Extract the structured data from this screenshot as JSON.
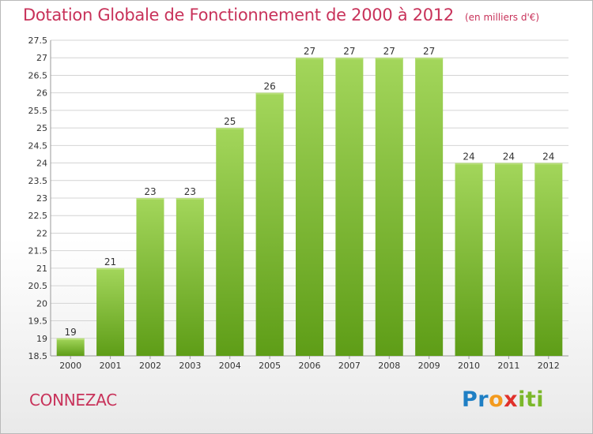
{
  "title": "Dotation Globale de Fonctionnement de 2000 à 2012",
  "unit": "(en milliers d'€)",
  "place": "CONNEZAC",
  "logo": {
    "p1": "Pr",
    "p2": "o",
    "p3": "x",
    "p4": "iti"
  },
  "colors": {
    "bar": "#8cc63f",
    "bar_light": "#a3d65b",
    "bar_dark": "#5e9d17",
    "title": "#c8325a"
  },
  "chart_data": {
    "type": "bar",
    "categories": [
      "2000",
      "2001",
      "2002",
      "2003",
      "2004",
      "2005",
      "2006",
      "2007",
      "2008",
      "2009",
      "2010",
      "2011",
      "2012"
    ],
    "values": [
      19,
      21,
      23,
      23,
      25,
      26,
      27,
      27,
      27,
      27,
      24,
      24,
      24
    ],
    "data_labels": [
      "19",
      "21",
      "23",
      "23",
      "25",
      "26",
      "27",
      "27",
      "27",
      "27",
      "24",
      "24",
      "24"
    ],
    "ylim": [
      18.5,
      27.5
    ],
    "yticks": [
      18.5,
      19,
      19.5,
      20,
      20.5,
      21,
      21.5,
      22,
      22.5,
      23,
      23.5,
      24,
      24.5,
      25,
      25.5,
      26,
      26.5,
      27,
      27.5
    ],
    "ytick_labels": [
      "18.5",
      "19",
      "19.5",
      "20",
      "20.5",
      "21",
      "21.5",
      "22",
      "22.5",
      "23",
      "23.5",
      "24",
      "24.5",
      "25",
      "25.5",
      "26",
      "26.5",
      "27",
      "27.5"
    ],
    "grid": true,
    "xlabel": "",
    "ylabel": ""
  }
}
